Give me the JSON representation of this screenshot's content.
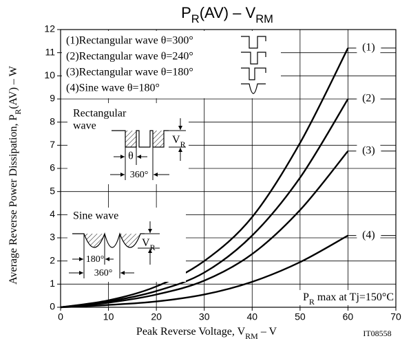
{
  "chart_data": {
    "type": "line",
    "title": [
      "P",
      "R",
      "(AV) – V",
      "RM"
    ],
    "x_label": [
      "Peak Reverse Voltage, V",
      "RM",
      " – V"
    ],
    "y_label": [
      "Average Reverse Power Dissipation, P",
      "R",
      "(AV) – W"
    ],
    "x": [
      0,
      10,
      20,
      30,
      40,
      50,
      60
    ],
    "series": [
      {
        "name": "(1)",
        "color": "#000000",
        "values": [
          0,
          0.3,
          0.9,
          2.0,
          3.9,
          7.1,
          11.2
        ]
      },
      {
        "name": "(2)",
        "color": "#000000",
        "values": [
          0,
          0.25,
          0.7,
          1.5,
          3.1,
          5.6,
          9.0
        ]
      },
      {
        "name": "(3)",
        "color": "#000000",
        "values": [
          0,
          0.2,
          0.55,
          1.15,
          2.3,
          4.2,
          6.75
        ]
      },
      {
        "name": "(4)",
        "color": "#000000",
        "values": [
          0,
          0.1,
          0.25,
          0.55,
          1.1,
          1.95,
          3.1
        ]
      }
    ],
    "legend": [
      "(1)Rectangular wave θ=300°",
      "(2)Rectangular wave θ=240°",
      "(3)Rectangular wave θ=180°",
      "(4)Sine wave θ=180°"
    ],
    "xlim": [
      0,
      70
    ],
    "ylim": [
      0,
      12
    ],
    "xticks": [
      0,
      10,
      20,
      30,
      40,
      50,
      60,
      70
    ],
    "yticks": [
      0,
      1,
      2,
      3,
      4,
      5,
      6,
      7,
      8,
      9,
      10,
      11,
      12
    ],
    "grid": true,
    "annotation": [
      "P",
      "R",
      " max at Tj=150°C"
    ],
    "insets": {
      "rectangular": {
        "label": [
          "Rectangular",
          "wave"
        ],
        "vr": [
          "V",
          "R"
        ],
        "theta": "θ",
        "period": "360°"
      },
      "sine": {
        "label": "Sine wave",
        "vr": [
          "V",
          "R"
        ],
        "half": "180°",
        "period": "360°"
      }
    },
    "code": "IT08558"
  }
}
